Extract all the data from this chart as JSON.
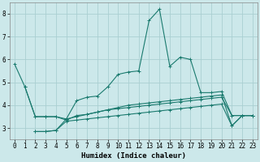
{
  "background_color": "#cce8ea",
  "grid_color": "#aacfd2",
  "line_color": "#1a7a6e",
  "xlabel": "Humidex (Indice chaleur)",
  "xlim": [
    -0.5,
    23.5
  ],
  "ylim": [
    2.5,
    8.5
  ],
  "yticks": [
    3,
    4,
    5,
    6,
    7,
    8
  ],
  "xticks": [
    0,
    1,
    2,
    3,
    4,
    5,
    6,
    7,
    8,
    9,
    10,
    11,
    12,
    13,
    14,
    15,
    16,
    17,
    18,
    19,
    20,
    21,
    22,
    23
  ],
  "lines": [
    {
      "x": [
        0,
        1,
        2,
        3,
        4,
        5,
        6,
        7,
        8,
        9,
        10,
        11,
        12,
        13,
        14,
        15,
        16,
        17,
        18,
        19,
        20,
        21,
        22,
        23
      ],
      "y": [
        5.8,
        4.8,
        3.5,
        3.5,
        3.5,
        3.4,
        4.2,
        4.35,
        4.4,
        4.8,
        5.35,
        5.45,
        5.5,
        7.7,
        8.2,
        5.7,
        6.1,
        6.0,
        4.55,
        4.55,
        4.6,
        3.55,
        3.55,
        3.55
      ]
    },
    {
      "x": [
        1,
        2,
        3,
        4,
        5,
        6,
        7,
        8,
        9,
        10,
        11,
        12,
        13,
        14,
        15,
        16,
        17,
        18,
        19,
        20,
        21,
        22,
        23
      ],
      "y": [
        4.8,
        3.5,
        3.5,
        3.5,
        3.35,
        3.55,
        3.6,
        3.7,
        3.8,
        3.85,
        3.9,
        3.95,
        4.0,
        4.05,
        4.1,
        4.15,
        4.2,
        4.25,
        4.3,
        4.35,
        3.55,
        3.55,
        3.55
      ]
    },
    {
      "x": [
        2,
        3,
        4,
        5,
        6,
        7,
        8,
        9,
        10,
        11,
        12,
        13,
        14,
        15,
        16,
        17,
        18,
        19,
        20,
        21,
        22,
        23
      ],
      "y": [
        2.85,
        2.85,
        2.9,
        3.4,
        3.5,
        3.6,
        3.7,
        3.8,
        3.9,
        4.0,
        4.05,
        4.1,
        4.15,
        4.2,
        4.25,
        4.3,
        4.35,
        4.4,
        4.45,
        3.1,
        3.55,
        3.55
      ]
    },
    {
      "x": [
        2,
        3,
        4,
        5,
        6,
        7,
        8,
        9,
        10,
        11,
        12,
        13,
        14,
        15,
        16,
        17,
        18,
        19,
        20,
        21,
        22,
        23
      ],
      "y": [
        2.85,
        2.85,
        2.9,
        3.3,
        3.35,
        3.4,
        3.45,
        3.5,
        3.55,
        3.6,
        3.65,
        3.7,
        3.75,
        3.8,
        3.85,
        3.9,
        3.95,
        4.0,
        4.05,
        3.1,
        3.55,
        3.55
      ]
    }
  ],
  "marker": "+",
  "markersize": 3,
  "linewidth": 0.8,
  "tick_fontsize": 5.5,
  "xlabel_fontsize": 6.5
}
